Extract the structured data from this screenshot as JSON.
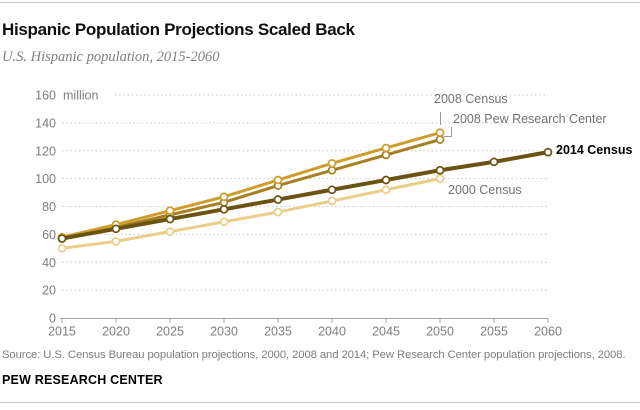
{
  "header": {
    "title": "Hispanic Population Projections Scaled Back",
    "subtitle": "U.S. Hispanic population, 2015-2060"
  },
  "chart_data": {
    "type": "line",
    "title": "Hispanic Population Projections Scaled Back",
    "subtitle": "U.S. Hispanic population, 2015-2060",
    "unit_label": "million",
    "x": [
      2015,
      2020,
      2025,
      2030,
      2035,
      2040,
      2045,
      2050,
      2055,
      2060
    ],
    "yticks": [
      0,
      20,
      40,
      60,
      80,
      100,
      120,
      140,
      160
    ],
    "ylim": [
      0,
      160
    ],
    "grid": "horizontal dotted",
    "legend": "direct labels on lines",
    "series": [
      {
        "name": "2000 Census",
        "color": "#EACD86",
        "years": [
          2015,
          2020,
          2025,
          2030,
          2035,
          2040,
          2045,
          2050
        ],
        "values": [
          50,
          55,
          62,
          69,
          76,
          84,
          92,
          100
        ]
      },
      {
        "name": "2008 Pew Research Center",
        "color": "#A67F22",
        "years": [
          2015,
          2020,
          2025,
          2030,
          2035,
          2040,
          2045,
          2050
        ],
        "values": [
          57,
          65,
          74,
          83,
          95,
          106,
          117,
          128
        ]
      },
      {
        "name": "2008 Census",
        "color": "#CE9E2C",
        "years": [
          2015,
          2020,
          2025,
          2030,
          2035,
          2040,
          2045,
          2050
        ],
        "values": [
          58,
          67,
          77,
          87,
          99,
          111,
          122,
          133
        ]
      },
      {
        "name": "2014 Census",
        "color": "#6B5413",
        "years": [
          2015,
          2020,
          2025,
          2030,
          2035,
          2040,
          2045,
          2050,
          2055,
          2060
        ],
        "values": [
          57,
          64,
          71,
          78,
          85,
          92,
          99,
          106,
          112,
          119
        ]
      }
    ]
  },
  "colors": {
    "grid": "#CBCBCB",
    "axis": "#A6A6A6",
    "tick_label": "#7E7E7E",
    "annotation": "#737373",
    "marker_fill": "#FFFFFF"
  },
  "footer": {
    "source": "Source: U.S. Census Bureau population projections, 2000, 2008 and 2014; Pew Research Center population projections, 2008.",
    "brand": "PEW RESEARCH CENTER"
  }
}
